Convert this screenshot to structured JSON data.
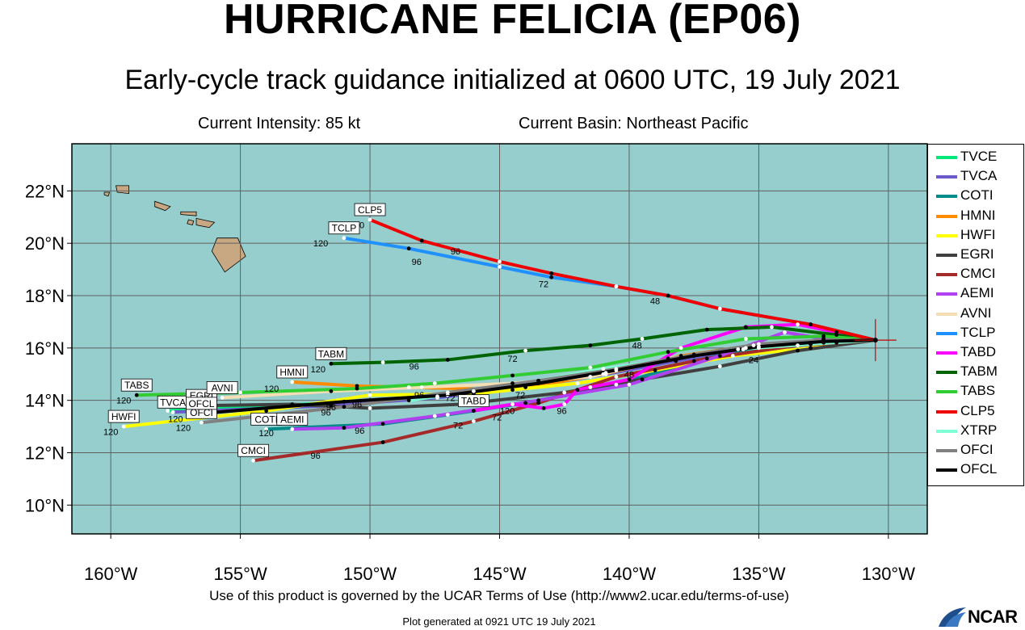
{
  "header": {
    "title": "HURRICANE FELICIA (EP06)",
    "subtitle": "Early-cycle track guidance initialized at 0600 UTC, 19 July 2021",
    "intensity": "Current Intensity: 85 kt",
    "basin": "Current Basin: Northeast Pacific"
  },
  "footer": {
    "terms": "Use of this product is governed by the UCAR Terms of Use (http://www2.ucar.edu/terms-of-use)",
    "generated": "Plot generated at 0921 UTC   19 July 2021",
    "logo_text": "NCAR"
  },
  "colors": {
    "ocean": "#96cdcd",
    "land": "#c8a882",
    "grid": "#606060",
    "storm_marker": "#cc0000"
  },
  "map": {
    "lon_range": [
      -161.5,
      -128.5
    ],
    "lat_range": [
      8.9,
      23.8
    ],
    "lon_ticks": [
      -160,
      -155,
      -150,
      -145,
      -140,
      -135,
      -130
    ],
    "lon_tick_labels": [
      "160°W",
      "155°W",
      "150°W",
      "145°W",
      "140°W",
      "135°W",
      "130°W"
    ],
    "lat_ticks": [
      10,
      12,
      14,
      16,
      18,
      20,
      22
    ],
    "lat_tick_labels": [
      "10°N",
      "12°N",
      "14°N",
      "16°N",
      "18°N",
      "20°N",
      "22°N"
    ],
    "current_position": [
      -130.5,
      16.3
    ]
  },
  "tracks": [
    {
      "model": "TVCE",
      "color": "#00e87a",
      "points": [
        [
          -130.5,
          16.3
        ],
        [
          -133.0,
          16.15
        ],
        [
          -135.6,
          15.95
        ],
        [
          -138.2,
          15.55
        ],
        [
          -140.9,
          15.05
        ],
        [
          -144.0,
          14.55
        ],
        [
          -147.4,
          14.15
        ],
        [
          -151.5,
          13.9
        ],
        [
          -157.8,
          13.6
        ]
      ],
      "end_label": "",
      "hour_labels": []
    },
    {
      "model": "TVCA",
      "color": "#6a5acd",
      "points": [
        [
          -130.5,
          16.3
        ],
        [
          -133.0,
          16.15
        ],
        [
          -135.6,
          15.95
        ],
        [
          -138.2,
          15.5
        ],
        [
          -140.9,
          15.0
        ],
        [
          -144.0,
          14.5
        ],
        [
          -147.4,
          14.1
        ],
        [
          -151.5,
          13.8
        ],
        [
          -157.6,
          13.55
        ]
      ],
      "end_label": "TVCA",
      "hour_labels": []
    },
    {
      "model": "COTI",
      "color": "#008b8b",
      "points": [
        [
          -130.5,
          16.3
        ],
        [
          -132.5,
          16.2
        ],
        [
          -135.0,
          16.0
        ],
        [
          -137.5,
          15.5
        ],
        [
          -140.5,
          14.6
        ],
        [
          -144.0,
          13.9
        ],
        [
          -147.0,
          13.45
        ],
        [
          -149.5,
          13.1
        ],
        [
          -154.0,
          12.9
        ]
      ],
      "end_label": "COTI",
      "hour_labels": [
        {
          "text": "120",
          "at": [
            -154.0,
            12.75
          ]
        }
      ]
    },
    {
      "model": "HMNI",
      "color": "#ff8c00",
      "points": [
        [
          -130.5,
          16.3
        ],
        [
          -132.5,
          16.3
        ],
        [
          -135.2,
          16.1
        ],
        [
          -138.0,
          15.7
        ],
        [
          -141.0,
          15.0
        ],
        [
          -144.5,
          14.4
        ],
        [
          -148.5,
          14.5
        ],
        [
          -150.5,
          14.55
        ],
        [
          -153.0,
          14.7
        ]
      ],
      "end_label": "HMNI",
      "hour_labels": [
        {
          "text": "120",
          "at": [
            -153.8,
            14.45
          ]
        },
        {
          "text": "96",
          "at": [
            -148.1,
            14.2
          ]
        },
        {
          "text": "72",
          "at": [
            -144.2,
            14.2
          ]
        }
      ]
    },
    {
      "model": "HWFI",
      "color": "#ffff00",
      "points": [
        [
          -130.5,
          16.3
        ],
        [
          -133.0,
          16.0
        ],
        [
          -136.0,
          15.7
        ],
        [
          -139.0,
          15.15
        ],
        [
          -142.0,
          14.65
        ],
        [
          -146.0,
          14.25
        ],
        [
          -150.0,
          14.2
        ],
        [
          -154.0,
          13.6
        ],
        [
          -159.5,
          13.0
        ]
      ],
      "end_label": "HWFI",
      "hour_labels": [
        {
          "text": "120",
          "at": [
            -160.0,
            12.8
          ]
        }
      ]
    },
    {
      "model": "EGRI",
      "color": "#404040",
      "points": [
        [
          -130.5,
          16.3
        ],
        [
          -133.5,
          15.9
        ],
        [
          -136.5,
          15.3
        ],
        [
          -139.5,
          14.8
        ],
        [
          -142.5,
          14.3
        ],
        [
          -146.5,
          13.85
        ],
        [
          -150.0,
          13.7
        ],
        [
          -153.0,
          13.85
        ],
        [
          -156.5,
          13.8
        ]
      ],
      "end_label": "EGRI",
      "hour_labels": [
        {
          "text": "120",
          "at": [
            -157.5,
            13.95
          ]
        }
      ]
    },
    {
      "model": "CMCI",
      "color": "#a52a2a",
      "points": [
        [
          -130.5,
          16.3
        ],
        [
          -132.0,
          16.2
        ],
        [
          -133.5,
          16.1
        ],
        [
          -137.0,
          15.6
        ],
        [
          -140.5,
          14.9
        ],
        [
          -143.5,
          13.9
        ],
        [
          -146.0,
          13.2
        ],
        [
          -149.5,
          12.4
        ],
        [
          -154.5,
          11.7
        ]
      ],
      "end_label": "CMCI",
      "hour_labels": [
        {
          "text": "96",
          "at": [
            -152.1,
            11.9
          ]
        },
        {
          "text": "72",
          "at": [
            -146.6,
            13.05
          ]
        }
      ]
    },
    {
      "model": "AEMI",
      "color": "#b040f0",
      "points": [
        [
          -130.5,
          16.3
        ],
        [
          -132.5,
          16.35
        ],
        [
          -134.0,
          16.6
        ],
        [
          -136.5,
          15.7
        ],
        [
          -140.0,
          14.6
        ],
        [
          -143.5,
          14.0
        ],
        [
          -147.5,
          13.4
        ],
        [
          -151.0,
          12.95
        ],
        [
          -153.0,
          12.9
        ]
      ],
      "end_label": "AEMI",
      "hour_labels": [
        {
          "text": "96",
          "at": [
            -150.4,
            12.85
          ]
        },
        {
          "text": "72",
          "at": [
            -145.1,
            13.35
          ]
        }
      ]
    },
    {
      "model": "AVNI",
      "color": "#f5deb3",
      "points": [
        [
          -130.5,
          16.3
        ],
        [
          -133.0,
          16.2
        ],
        [
          -135.5,
          16.0
        ],
        [
          -138.5,
          15.6
        ],
        [
          -141.5,
          14.9
        ],
        [
          -144.5,
          14.65
        ],
        [
          -148.0,
          14.5
        ],
        [
          -151.5,
          14.35
        ],
        [
          -155.7,
          14.1
        ]
      ],
      "end_label": "AVNI",
      "hour_labels": [
        {
          "text": "120",
          "at": [
            -156.4,
            13.85
          ]
        },
        {
          "text": "96",
          "at": [
            -150.5,
            13.85
          ]
        }
      ]
    },
    {
      "model": "TCLP",
      "color": "#1e90ff",
      "points": [
        [
          -130.5,
          16.3
        ],
        [
          -133.0,
          16.9
        ],
        [
          -136.5,
          17.5
        ],
        [
          -138.5,
          18.0
        ],
        [
          -140.5,
          18.35
        ],
        [
          -143.0,
          18.7
        ],
        [
          -145.0,
          19.1
        ],
        [
          -148.5,
          19.8
        ],
        [
          -151.0,
          20.2
        ]
      ],
      "end_label": "TCLP",
      "hour_labels": [
        {
          "text": "120",
          "at": [
            -151.9,
            20.0
          ]
        },
        {
          "text": "96",
          "at": [
            -148.2,
            19.3
          ]
        },
        {
          "text": "72",
          "at": [
            -143.3,
            18.45
          ]
        },
        {
          "text": "48",
          "at": [
            -139.0,
            17.8
          ]
        }
      ]
    },
    {
      "model": "TABD",
      "color": "#ff00ff",
      "points": [
        [
          -130.5,
          16.3
        ],
        [
          -132.0,
          16.6
        ],
        [
          -133.5,
          16.9
        ],
        [
          -135.5,
          16.8
        ],
        [
          -138.0,
          16.0
        ],
        [
          -140.0,
          14.8
        ],
        [
          -141.5,
          14.5
        ],
        [
          -142.0,
          14.4
        ],
        [
          -142.5,
          13.85
        ],
        [
          -143.3,
          13.7
        ],
        [
          -144.5,
          13.85
        ],
        [
          -146.0,
          13.6
        ]
      ],
      "end_label": "TABD",
      "hour_labels": [
        {
          "text": "96",
          "at": [
            -142.6,
            13.6
          ]
        },
        {
          "text": "120",
          "at": [
            -144.7,
            13.6
          ]
        }
      ]
    },
    {
      "model": "TABM",
      "color": "#006400",
      "points": [
        [
          -130.5,
          16.3
        ],
        [
          -132.0,
          16.5
        ],
        [
          -134.5,
          16.8
        ],
        [
          -137.0,
          16.7
        ],
        [
          -139.5,
          16.35
        ],
        [
          -141.5,
          16.1
        ],
        [
          -144.0,
          15.9
        ],
        [
          -147.0,
          15.55
        ],
        [
          -149.5,
          15.45
        ],
        [
          -151.5,
          15.4
        ]
      ],
      "end_label": "TABM",
      "hour_labels": [
        {
          "text": "120",
          "at": [
            -152.0,
            15.2
          ]
        },
        {
          "text": "96",
          "at": [
            -148.3,
            15.3
          ]
        },
        {
          "text": "72",
          "at": [
            -144.5,
            15.6
          ]
        },
        {
          "text": "48",
          "at": [
            -139.7,
            16.1
          ]
        }
      ]
    },
    {
      "model": "TABS",
      "color": "#32cd32",
      "points": [
        [
          -130.5,
          16.3
        ],
        [
          -132.5,
          16.45
        ],
        [
          -135.5,
          16.35
        ],
        [
          -138.5,
          15.85
        ],
        [
          -141.5,
          15.25
        ],
        [
          -144.5,
          14.95
        ],
        [
          -147.5,
          14.65
        ],
        [
          -150.5,
          14.45
        ],
        [
          -155.0,
          14.3
        ],
        [
          -159.0,
          14.2
        ]
      ],
      "end_label": "TABS",
      "hour_labels": [
        {
          "text": "120",
          "at": [
            -159.5,
            14.0
          ]
        }
      ]
    },
    {
      "model": "CLP5",
      "color": "#ee0000",
      "points": [
        [
          -130.5,
          16.3
        ],
        [
          -133.0,
          16.9
        ],
        [
          -136.5,
          17.5
        ],
        [
          -138.5,
          18.0
        ],
        [
          -140.5,
          18.35
        ],
        [
          -143.0,
          18.85
        ],
        [
          -145.0,
          19.3
        ],
        [
          -148.0,
          20.1
        ],
        [
          -150.0,
          20.9
        ]
      ],
      "end_label": "CLP5",
      "hour_labels": [
        {
          "text": "120",
          "at": [
            -150.5,
            20.7
          ]
        },
        {
          "text": "96",
          "at": [
            -146.7,
            19.7
          ]
        }
      ]
    },
    {
      "model": "XTRP",
      "color": "#7fffd4",
      "points": [
        [
          -130.5,
          16.3
        ],
        [
          -133.0,
          16.15
        ],
        [
          -135.8,
          15.95
        ],
        [
          -138.5,
          15.55
        ],
        [
          -141.0,
          15.2
        ],
        [
          -143.5,
          14.75
        ],
        [
          -146.0,
          14.35
        ],
        [
          -148.5,
          14.0
        ]
      ],
      "end_label": "",
      "hour_labels": []
    },
    {
      "model": "OFCI",
      "color": "#808080",
      "points": [
        [
          -130.5,
          16.3
        ],
        [
          -132.5,
          16.3
        ],
        [
          -135.0,
          16.15
        ],
        [
          -137.5,
          15.75
        ],
        [
          -140.5,
          15.2
        ],
        [
          -143.5,
          14.75
        ],
        [
          -147.0,
          14.3
        ],
        [
          -151.0,
          13.75
        ],
        [
          -156.5,
          13.15
        ]
      ],
      "end_label": "OFCI",
      "hour_labels": [
        {
          "text": "120",
          "at": [
            -157.2,
            12.95
          ]
        },
        {
          "text": "96",
          "at": [
            -151.7,
            13.55
          ]
        },
        {
          "text": "72",
          "at": [
            -146.9,
            14.1
          ]
        },
        {
          "text": "48",
          "at": [
            -140.0,
            15.0
          ]
        }
      ]
    },
    {
      "model": "OFCL",
      "color": "#000000",
      "points": [
        [
          -130.5,
          16.3
        ],
        [
          -132.5,
          16.25
        ],
        [
          -135.0,
          16.05
        ],
        [
          -137.5,
          15.7
        ],
        [
          -140.5,
          15.15
        ],
        [
          -143.5,
          14.65
        ],
        [
          -147.0,
          14.2
        ],
        [
          -151.0,
          13.95
        ],
        [
          -156.5,
          13.5
        ]
      ],
      "end_label": "OFCL",
      "hour_labels": [
        {
          "text": "120",
          "at": [
            -157.5,
            13.3
          ]
        },
        {
          "text": "96",
          "at": [
            -151.5,
            13.75
          ]
        },
        {
          "text": "24",
          "at": [
            -135.2,
            15.55
          ]
        }
      ]
    }
  ],
  "legend": [
    "TVCE",
    "TVCA",
    "COTI",
    "HMNI",
    "HWFI",
    "EGRI",
    "CMCI",
    "AEMI",
    "AVNI",
    "TCLP",
    "TABD",
    "TABM",
    "TABS",
    "CLP5",
    "XTRP",
    "OFCI",
    "OFCL"
  ]
}
